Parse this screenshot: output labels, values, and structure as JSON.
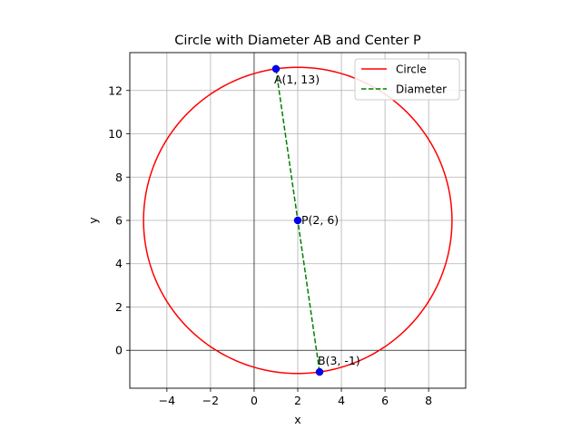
{
  "chart_data": {
    "type": "scatter",
    "title": "Circle with Diameter AB and Center P",
    "xlabel": "x",
    "ylabel": "y",
    "xlim": [
      -5.7,
      9.7
    ],
    "ylim": [
      -1.75,
      13.75
    ],
    "xticks": [
      -4,
      -2,
      0,
      2,
      4,
      6,
      8
    ],
    "yticks": [
      0,
      2,
      4,
      6,
      8,
      10,
      12
    ],
    "xtick_labels": [
      "−4",
      "−2",
      "0",
      "2",
      "4",
      "6",
      "8"
    ],
    "ytick_labels": [
      "0",
      "2",
      "4",
      "6",
      "8",
      "10",
      "12"
    ],
    "grid": true,
    "axes_lines_at_zero": true,
    "legend_position": "upper right",
    "circle": {
      "name": "Circle",
      "center": [
        2,
        6
      ],
      "radius": 7.071,
      "color": "#ff0000"
    },
    "diameter": {
      "name": "Diameter",
      "from": [
        1,
        13
      ],
      "to": [
        3,
        -1
      ],
      "color": "#008000",
      "style": "dashed"
    },
    "points": [
      {
        "label": "A(1, 13)",
        "x": 1,
        "y": 13
      },
      {
        "label": "P(2, 6)",
        "x": 2,
        "y": 6
      },
      {
        "label": "B(3, -1)",
        "x": 3,
        "y": -1
      }
    ],
    "point_color": "#0000ff",
    "legend": [
      {
        "label": "Circle",
        "color": "#ff0000",
        "style": "solid"
      },
      {
        "label": "Diameter",
        "color": "#008000",
        "style": "dashed"
      }
    ]
  }
}
